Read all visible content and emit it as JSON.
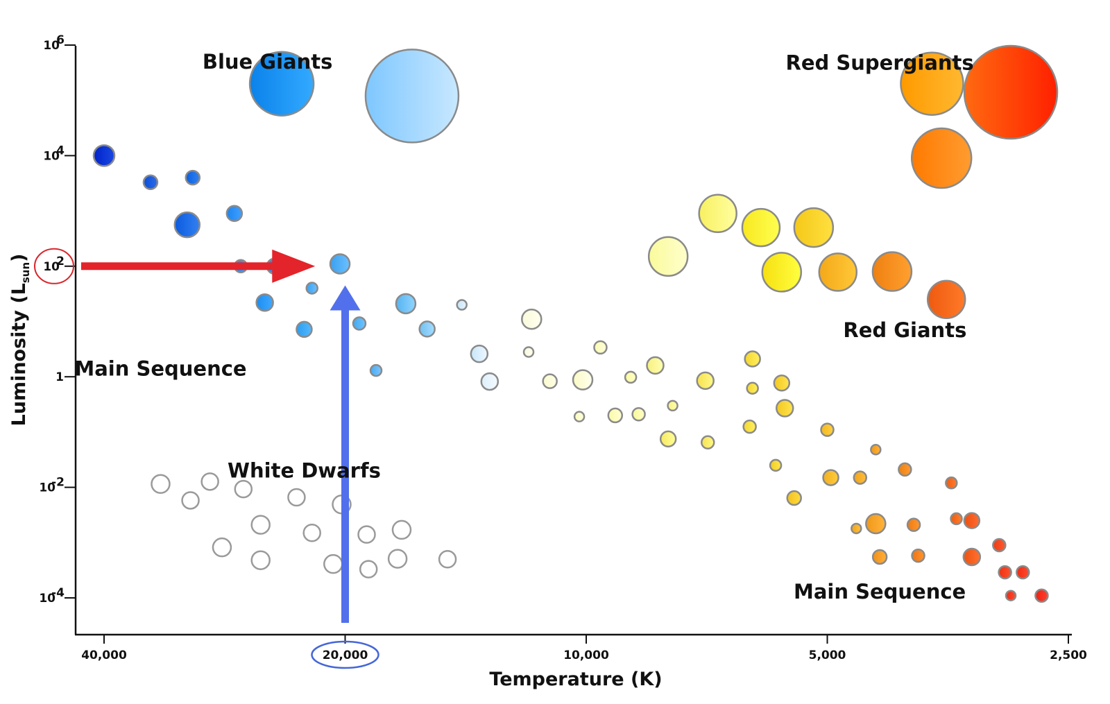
{
  "chart_data": {
    "type": "scatter",
    "title": "",
    "xlabel": "Temperature (K)",
    "ylabel_main": "Luminosity (L",
    "ylabel_sub": "sun",
    "ylabel_close": ")",
    "x_scale": "log-reversed",
    "y_scale": "log",
    "xlim": [
      45000,
      2400
    ],
    "ylim": [
      2e-05,
      1000000
    ],
    "x_ticks": [
      {
        "value": 40000,
        "label": "40,000"
      },
      {
        "value": 20000,
        "label": "20,000"
      },
      {
        "value": 10000,
        "label": "10,000"
      },
      {
        "value": 5000,
        "label": "5,000"
      },
      {
        "value": 2500,
        "label": "2,500"
      }
    ],
    "y_ticks": [
      {
        "value": 1000000,
        "base": "10",
        "exp": "6"
      },
      {
        "value": 10000,
        "base": "10",
        "exp": "4"
      },
      {
        "value": 100,
        "base": "10",
        "exp": "2"
      },
      {
        "value": 1,
        "base": "1",
        "exp": ""
      },
      {
        "value": 0.01,
        "base": "10",
        "exp": "-2"
      },
      {
        "value": 0.0001,
        "base": "10",
        "exp": "-4"
      }
    ],
    "grid": false,
    "labels": [
      {
        "text": "Blue Giants",
        "x": 25000,
        "y": 500000
      },
      {
        "text": "Red Supergiants",
        "x": 4300,
        "y": 480000
      },
      {
        "text": "Red Giants",
        "x": 4000,
        "y": 7
      },
      {
        "text": "Main Sequence",
        "x": 34000,
        "y": 1.4
      },
      {
        "text": "White Dwarfs",
        "x": 22500,
        "y": 0.02
      },
      {
        "text": "Main Sequence",
        "x": 4300,
        "y": 0.00013
      }
    ],
    "stars": [
      {
        "t": 24000,
        "l": 200000,
        "r": 46,
        "c1": "#0a82ea",
        "c2": "#33aaff"
      },
      {
        "t": 16500,
        "l": 120000,
        "r": 67,
        "c1": "#7ec7ff",
        "c2": "#c8e8ff"
      },
      {
        "t": 3700,
        "l": 200000,
        "r": 45,
        "c1": "#ff9a00",
        "c2": "#ffb830"
      },
      {
        "t": 2950,
        "l": 140000,
        "r": 67,
        "c1": "#ff6a10",
        "c2": "#ff2000"
      },
      {
        "t": 3600,
        "l": 9000,
        "r": 43,
        "c1": "#ff7a00",
        "c2": "#ff9c30"
      },
      {
        "t": 40000,
        "l": 10000,
        "r": 15,
        "c1": "#0022cc",
        "c2": "#1a48e0"
      },
      {
        "t": 35000,
        "l": 3300,
        "r": 10,
        "c1": "#0a4fd8",
        "c2": "#2d6ae8"
      },
      {
        "t": 31000,
        "l": 4000,
        "r": 10,
        "c1": "#0a60e0",
        "c2": "#3380f0"
      },
      {
        "t": 31500,
        "l": 560,
        "r": 18,
        "c1": "#0a5be0",
        "c2": "#3380f0"
      },
      {
        "t": 27500,
        "l": 900,
        "r": 11,
        "c1": "#1c85f0",
        "c2": "#40a0ff"
      },
      {
        "t": 27000,
        "l": 100,
        "r": 9,
        "c1": "#1c85f0",
        "c2": "#40a0ff"
      },
      {
        "t": 24500,
        "l": 100,
        "r": 11,
        "c1": "#1c85f0",
        "c2": "#40a0ff"
      },
      {
        "t": 20300,
        "l": 110,
        "r": 14,
        "c1": "#3aa0f0",
        "c2": "#6cc0ff"
      },
      {
        "t": 22000,
        "l": 40,
        "r": 8,
        "c1": "#3aa0f0",
        "c2": "#6cc0ff"
      },
      {
        "t": 25200,
        "l": 22,
        "r": 12,
        "c1": "#1c8ef0",
        "c2": "#40a8ff"
      },
      {
        "t": 22500,
        "l": 7.2,
        "r": 11,
        "c1": "#2a9ef0",
        "c2": "#55b8ff"
      },
      {
        "t": 19200,
        "l": 9.2,
        "r": 9,
        "c1": "#40a8f0",
        "c2": "#70c4ff"
      },
      {
        "t": 16800,
        "l": 21,
        "r": 14,
        "c1": "#55b4f0",
        "c2": "#90d4ff"
      },
      {
        "t": 15800,
        "l": 7.3,
        "r": 11,
        "c1": "#70c0f0",
        "c2": "#a6dcff"
      },
      {
        "t": 18300,
        "l": 1.3,
        "r": 8,
        "c1": "#48aaf0",
        "c2": "#7cc6ff"
      },
      {
        "t": 14300,
        "l": 20,
        "r": 7,
        "c1": "#c4e4fa",
        "c2": "#e8f4ff"
      },
      {
        "t": 13600,
        "l": 2.6,
        "r": 12,
        "c1": "#c8e6fa",
        "c2": "#eef7ff"
      },
      {
        "t": 13200,
        "l": 0.82,
        "r": 12,
        "c1": "#dceffa",
        "c2": "#f4faff"
      },
      {
        "t": 11700,
        "l": 11,
        "r": 14,
        "c1": "#fafadc",
        "c2": "#ffffee"
      },
      {
        "t": 11800,
        "l": 2.8,
        "r": 7,
        "c1": "#fafae0",
        "c2": "#ffffee"
      },
      {
        "t": 11100,
        "l": 0.83,
        "r": 10,
        "c1": "#fafad0",
        "c2": "#ffffe6"
      },
      {
        "t": 10100,
        "l": 0.88,
        "r": 14,
        "c1": "#fafac4",
        "c2": "#fffff0"
      },
      {
        "t": 9600,
        "l": 3.4,
        "r": 9,
        "c1": "#fafab4",
        "c2": "#ffffd8"
      },
      {
        "t": 10200,
        "l": 0.19,
        "r": 7,
        "c1": "#fafabc",
        "c2": "#ffffe0"
      },
      {
        "t": 9200,
        "l": 0.2,
        "r": 10,
        "c1": "#fafaa8",
        "c2": "#ffffd4"
      },
      {
        "t": 8800,
        "l": 0.98,
        "r": 8,
        "c1": "#fafa9c",
        "c2": "#ffffcc"
      },
      {
        "t": 8600,
        "l": 0.21,
        "r": 9,
        "c1": "#f8f89a",
        "c2": "#ffffc8"
      },
      {
        "t": 8200,
        "l": 1.6,
        "r": 12,
        "c1": "#f8f080",
        "c2": "#ffffb0"
      },
      {
        "t": 7800,
        "l": 0.3,
        "r": 7,
        "c1": "#f8f080",
        "c2": "#ffffb0"
      },
      {
        "t": 7900,
        "l": 0.075,
        "r": 11,
        "c1": "#f6e860",
        "c2": "#ffff9a"
      },
      {
        "t": 7100,
        "l": 0.85,
        "r": 12,
        "c1": "#f6e250",
        "c2": "#fff888"
      },
      {
        "t": 7050,
        "l": 0.065,
        "r": 9,
        "c1": "#f6e250",
        "c2": "#fff888"
      },
      {
        "t": 6200,
        "l": 2.1,
        "r": 11,
        "c1": "#f4d630",
        "c2": "#fff060"
      },
      {
        "t": 6200,
        "l": 0.62,
        "r": 8,
        "c1": "#f4d630",
        "c2": "#fff060"
      },
      {
        "t": 6250,
        "l": 0.125,
        "r": 9,
        "c1": "#f4d630",
        "c2": "#fff060"
      },
      {
        "t": 5800,
        "l": 0.025,
        "r": 8,
        "c1": "#f2cc20",
        "c2": "#ffe850"
      },
      {
        "t": 5700,
        "l": 0.77,
        "r": 11,
        "c1": "#f2c820",
        "c2": "#ffe450"
      },
      {
        "t": 5650,
        "l": 0.27,
        "r": 12,
        "c1": "#f2c820",
        "c2": "#ffe450"
      },
      {
        "t": 5500,
        "l": 0.0064,
        "r": 10,
        "c1": "#f2c020",
        "c2": "#ffdc40"
      },
      {
        "t": 5000,
        "l": 0.11,
        "r": 9,
        "c1": "#f2b820",
        "c2": "#ffd040"
      },
      {
        "t": 4950,
        "l": 0.015,
        "r": 11,
        "c1": "#f2b020",
        "c2": "#ffcc40"
      },
      {
        "t": 4600,
        "l": 0.0018,
        "r": 7,
        "c1": "#f0a418",
        "c2": "#ffc040"
      },
      {
        "t": 4550,
        "l": 0.015,
        "r": 9,
        "c1": "#f0a418",
        "c2": "#ffbc40"
      },
      {
        "t": 4350,
        "l": 0.048,
        "r": 7,
        "c1": "#f09818",
        "c2": "#ffb43c"
      },
      {
        "t": 4350,
        "l": 0.0022,
        "r": 14,
        "c1": "#f09818",
        "c2": "#ffb43c"
      },
      {
        "t": 4300,
        "l": 0.00055,
        "r": 10,
        "c1": "#f09018",
        "c2": "#ffb03c"
      },
      {
        "t": 4000,
        "l": 0.021,
        "r": 9,
        "c1": "#ee8010",
        "c2": "#ff9c34"
      },
      {
        "t": 3900,
        "l": 0.0021,
        "r": 9,
        "c1": "#ee7a10",
        "c2": "#ff9830"
      },
      {
        "t": 3850,
        "l": 0.00058,
        "r": 9,
        "c1": "#ee7410",
        "c2": "#ff9430"
      },
      {
        "t": 3500,
        "l": 0.012,
        "r": 8,
        "c1": "#ee5a10",
        "c2": "#ff7c30"
      },
      {
        "t": 3450,
        "l": 0.0027,
        "r": 8,
        "c1": "#ee5c10",
        "c2": "#ff7e30"
      },
      {
        "t": 3300,
        "l": 0.0025,
        "r": 11,
        "c1": "#ee4e10",
        "c2": "#ff6c30"
      },
      {
        "t": 3300,
        "l": 0.00055,
        "r": 12,
        "c1": "#ee5210",
        "c2": "#ff7030"
      },
      {
        "t": 3050,
        "l": 0.0009,
        "r": 9,
        "c1": "#ee3a10",
        "c2": "#ff5a30"
      },
      {
        "t": 3000,
        "l": 0.00029,
        "r": 9,
        "c1": "#ee3010",
        "c2": "#ff5230"
      },
      {
        "t": 2850,
        "l": 0.00029,
        "r": 9,
        "c1": "#ee2a10",
        "c2": "#ff4a30"
      },
      {
        "t": 2950,
        "l": 0.00011,
        "r": 7,
        "c1": "#ee2a10",
        "c2": "#ff4a30"
      },
      {
        "t": 2700,
        "l": 0.00011,
        "r": 9,
        "c1": "#ee2010",
        "c2": "#ff4030"
      },
      {
        "t": 7900,
        "l": 150,
        "r": 28,
        "c1": "#fafa9c",
        "c2": "#ffffcc"
      },
      {
        "t": 6850,
        "l": 900,
        "r": 27,
        "c1": "#f8f060",
        "c2": "#ffffa0"
      },
      {
        "t": 6050,
        "l": 500,
        "r": 27,
        "c1": "#f8e820",
        "c2": "#ffff50"
      },
      {
        "t": 5700,
        "l": 78,
        "r": 28,
        "c1": "#f6e010",
        "c2": "#ffff40"
      },
      {
        "t": 5200,
        "l": 500,
        "r": 28,
        "c1": "#f4c818",
        "c2": "#ffe040"
      },
      {
        "t": 4850,
        "l": 78,
        "r": 27,
        "c1": "#f4a818",
        "c2": "#ffc838"
      },
      {
        "t": 4150,
        "l": 80,
        "r": 28,
        "c1": "#ee8010",
        "c2": "#ffa030"
      },
      {
        "t": 3550,
        "l": 25,
        "r": 27,
        "c1": "#ee5a10",
        "c2": "#ff7a28"
      }
    ],
    "white_dwarfs": [
      {
        "t": 34000,
        "l": 0.0115,
        "r": 13
      },
      {
        "t": 31200,
        "l": 0.0058,
        "r": 12
      },
      {
        "t": 29500,
        "l": 0.0127,
        "r": 12
      },
      {
        "t": 26800,
        "l": 0.0093,
        "r": 12
      },
      {
        "t": 23000,
        "l": 0.0066,
        "r": 12
      },
      {
        "t": 28500,
        "l": 0.00082,
        "r": 13
      },
      {
        "t": 25500,
        "l": 0.0021,
        "r": 13
      },
      {
        "t": 22000,
        "l": 0.0015,
        "r": 12
      },
      {
        "t": 20200,
        "l": 0.0049,
        "r": 13
      },
      {
        "t": 18800,
        "l": 0.0014,
        "r": 12
      },
      {
        "t": 17000,
        "l": 0.0017,
        "r": 13
      },
      {
        "t": 25500,
        "l": 0.00048,
        "r": 13
      },
      {
        "t": 20700,
        "l": 0.00041,
        "r": 13
      },
      {
        "t": 18700,
        "l": 0.00033,
        "r": 12
      },
      {
        "t": 17200,
        "l": 0.00051,
        "r": 13
      },
      {
        "t": 14900,
        "l": 0.0005,
        "r": 12
      }
    ],
    "annotations": {
      "red_arrow": {
        "from_t": 50000,
        "to_t": 21800,
        "l": 100,
        "color": "#e3242b"
      },
      "blue_arrow": {
        "t": 20000,
        "from_l": 6e-05,
        "to_l": 45,
        "color": "#5270ec"
      },
      "red_ring": {
        "target": "y-tick-100",
        "color": "#d9252b"
      },
      "blue_ring": {
        "target": "x-tick-20000",
        "color": "#4466d8"
      }
    }
  }
}
